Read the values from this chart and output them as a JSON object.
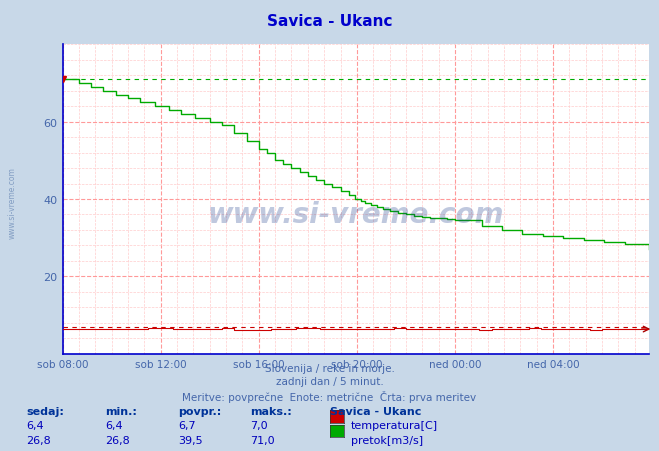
{
  "title": "Savica - Ukanc",
  "title_color": "#0000cc",
  "bg_color": "#c8d8e8",
  "plot_bg_color": "#ffffff",
  "grid_color_major": "#ff9999",
  "grid_color_minor": "#ffcccc",
  "tick_color": "#4466aa",
  "footer_color": "#4466aa",
  "watermark": "www.si-vreme.com",
  "watermark_color": "#1a3a8a",
  "watermark_alpha": 0.28,
  "left_watermark": "www.si-vreme.com",
  "left_watermark_color": "#5577aa",
  "footer_line1": "Slovenija / reke in morje.",
  "footer_line2": "zadnji dan / 5 minut.",
  "footer_line3": "Meritve: povprečne  Enote: metrične  Črta: prva meritev",
  "legend_title": "Savica - Ukanc",
  "legend_items": [
    {
      "label": "temperatura[C]",
      "color": "#cc0000"
    },
    {
      "label": "pretok[m3/s]",
      "color": "#00cc00"
    }
  ],
  "stats_headers": [
    "sedaj:",
    "min.:",
    "povpr.:",
    "maks.:"
  ],
  "stats_temp": [
    6.4,
    6.4,
    6.7,
    7.0
  ],
  "stats_pretok": [
    26.8,
    26.8,
    39.5,
    71.0
  ],
  "ylim": [
    0,
    80
  ],
  "yticks": [
    20,
    40,
    60
  ],
  "xtick_labels": [
    "sob 08:00",
    "sob 12:00",
    "sob 16:00",
    "sob 20:00",
    "ned 00:00",
    "ned 04:00"
  ],
  "temp_color": "#cc0000",
  "pretok_color": "#00aa00",
  "first_measure_pretok": 71.0,
  "first_measure_temp": 7.0,
  "border_color": "#0000cc",
  "arrow_color": "#aa0000"
}
